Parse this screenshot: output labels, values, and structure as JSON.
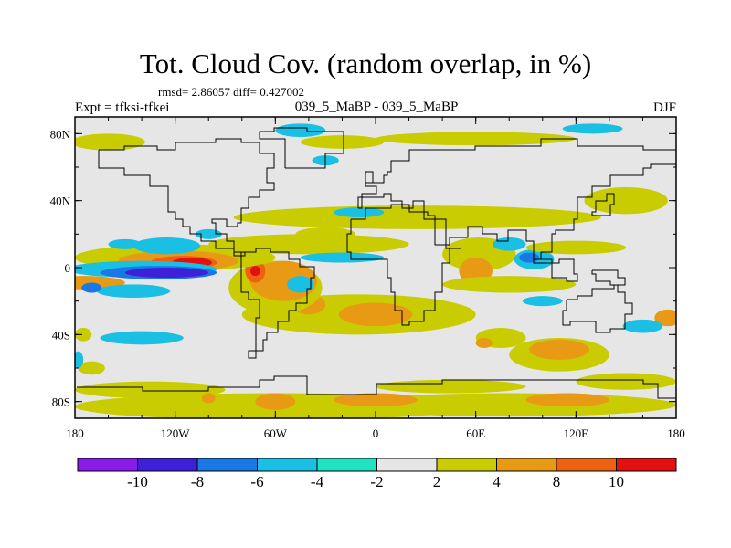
{
  "chart_data": {
    "type": "heatmap",
    "title": "Tot. Cloud Cov. (random overlap, in %)",
    "stats": "rmsd= 2.86057 diff= 0.427002",
    "experiment": "Expt = tfksi-tfkei",
    "comparison": "039_5_MaBP - 039_5_MaBP",
    "season": "DJF",
    "x_ticks": [
      "180",
      "120W",
      "60W",
      "0",
      "60E",
      "120E",
      "180"
    ],
    "y_ticks": [
      "80N",
      "40N",
      "0",
      "40S",
      "80S"
    ],
    "colorbar_labels": [
      "-10",
      "-8",
      "-6",
      "-4",
      "-2",
      "2",
      "4",
      "8",
      "10"
    ],
    "colors": [
      "#8a1ae8",
      "#3d20d8",
      "#1a78e4",
      "#19c0e4",
      "#1ee4c4",
      "#e6e6e6",
      "#c8cc00",
      "#e89a14",
      "#ec6212",
      "#e41010"
    ],
    "land_outline_color": "#000000"
  }
}
